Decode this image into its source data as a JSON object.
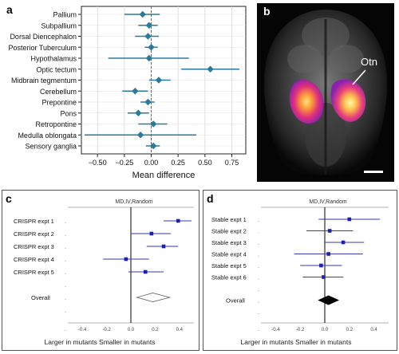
{
  "panels": {
    "a": {
      "letter": "a"
    },
    "b": {
      "letter": "b",
      "region_label": "Otn"
    },
    "c": {
      "letter": "c"
    },
    "d": {
      "letter": "d"
    }
  },
  "colors": {
    "marker_a": "#2b7a9b",
    "marker_forest": "#1f1fb4",
    "zero_line_a": "#e03030",
    "overall_diamond_d": "#000000"
  },
  "chart_data": [
    {
      "type": "scatter",
      "title": "",
      "xlabel": "Mean difference",
      "ylabel": "",
      "xlim": [
        -0.65,
        0.88
      ],
      "xticks": [
        -0.5,
        -0.25,
        0.0,
        0.25,
        0.5,
        0.75
      ],
      "xtick_labels": [
        "−0.50",
        "−0.25",
        "0.00",
        "0.25",
        "0.50",
        "0.75"
      ],
      "grid": true,
      "rows": [
        {
          "label": "Pallium",
          "value": -0.08,
          "lo": -0.25,
          "hi": 0.08
        },
        {
          "label": "Subpallium",
          "value": -0.02,
          "lo": -0.12,
          "hi": 0.06
        },
        {
          "label": "Dorsal Diencephalon",
          "value": -0.03,
          "lo": -0.15,
          "hi": 0.07
        },
        {
          "label": "Posterior Tuberculum",
          "value": 0.0,
          "lo": -0.06,
          "hi": 0.06
        },
        {
          "label": "Hypothalamus",
          "value": -0.02,
          "lo": -0.4,
          "hi": 0.35
        },
        {
          "label": "Optic tectum",
          "value": 0.55,
          "lo": 0.28,
          "hi": 0.82
        },
        {
          "label": "Midbrain tegmentum",
          "value": 0.07,
          "lo": -0.02,
          "hi": 0.18
        },
        {
          "label": "Cerebellum",
          "value": -0.15,
          "lo": -0.27,
          "hi": -0.03
        },
        {
          "label": "Prepontine",
          "value": -0.03,
          "lo": -0.1,
          "hi": 0.03
        },
        {
          "label": "Pons",
          "value": -0.12,
          "lo": -0.22,
          "hi": -0.02
        },
        {
          "label": "Retropontine",
          "value": 0.02,
          "lo": -0.12,
          "hi": 0.15
        },
        {
          "label": "Medulla oblongata",
          "value": -0.1,
          "lo": -0.62,
          "hi": 0.42
        },
        {
          "label": "Sensory ganglia",
          "value": 0.02,
          "lo": -0.05,
          "hi": 0.08
        }
      ]
    },
    {
      "type": "scatter",
      "title": "MD,IV,Random",
      "xlabel": "Larger in mutants Smaller in mutants",
      "xlim": [
        -0.52,
        0.52
      ],
      "xticks": [
        -0.4,
        -0.2,
        0.0,
        0.2,
        0.4
      ],
      "xtick_labels": [
        "-0.4",
        "-0.2",
        "0.0",
        "0.2",
        "0.4"
      ],
      "rows": [
        {
          "label": "CRISPR expt 1",
          "value": 0.39,
          "lo": 0.27,
          "hi": 0.5
        },
        {
          "label": "CRISPR expt 2",
          "value": 0.17,
          "lo": 0.0,
          "hi": 0.33
        },
        {
          "label": "CRISPR expt 3",
          "value": 0.27,
          "lo": 0.13,
          "hi": 0.39
        },
        {
          "label": "CRISPR expt 4",
          "value": -0.04,
          "lo": -0.23,
          "hi": 0.15
        },
        {
          "label": "CRISPR expt 5",
          "value": 0.12,
          "lo": -0.02,
          "hi": 0.27
        }
      ],
      "overall": {
        "label": "Overall",
        "value": 0.18,
        "lo": 0.05,
        "hi": 0.32,
        "filled": false
      }
    },
    {
      "type": "scatter",
      "title": "MD,IV,Random",
      "xlabel": "Larger in mutants Smaller in mutants",
      "xlim": [
        -0.52,
        0.52
      ],
      "xticks": [
        -0.4,
        -0.2,
        0.0,
        0.2,
        0.4
      ],
      "xtick_labels": [
        "-0.4",
        "-0.2",
        "0.0",
        "0.2",
        "0.4"
      ],
      "rows": [
        {
          "label": "Stable expt 1",
          "value": 0.2,
          "lo": -0.05,
          "hi": 0.45
        },
        {
          "label": "Stable expt 2",
          "value": 0.04,
          "lo": -0.15,
          "hi": 0.23
        },
        {
          "label": "Stable expt 3",
          "value": 0.15,
          "lo": 0.0,
          "hi": 0.32
        },
        {
          "label": "Stable expt 4",
          "value": 0.03,
          "lo": -0.25,
          "hi": 0.31
        },
        {
          "label": "Stable expt 5",
          "value": -0.03,
          "lo": -0.2,
          "hi": 0.14
        },
        {
          "label": "Stable expt 6",
          "value": -0.01,
          "lo": -0.18,
          "hi": 0.15
        }
      ],
      "overall": {
        "label": "Overall",
        "value": 0.03,
        "lo": -0.05,
        "hi": 0.11,
        "filled": true
      }
    }
  ]
}
